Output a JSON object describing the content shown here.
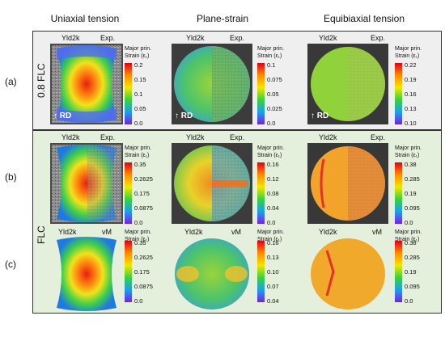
{
  "columns": [
    "Uniaxial tension",
    "Plane-strain",
    "Equibiaxial tension"
  ],
  "rows": [
    {
      "label": "(a)",
      "band": "0.8 FLC"
    },
    {
      "label": "(b)",
      "band": "FLC"
    },
    {
      "label": "(c)",
      "band": ""
    }
  ],
  "direction_label": "RD",
  "colorbar_title_line1": "Major prin.",
  "colorbar_title_line2": "Strain (ε₁)",
  "panels": {
    "a1": {
      "left": "Yld2k",
      "right": "Exp.",
      "ticks": [
        "0.2",
        "0.15",
        "0.1",
        "0.05",
        "0.0"
      ]
    },
    "a2": {
      "left": "Yld2k",
      "right": "Exp.",
      "ticks": [
        "0.1",
        "0.075",
        "0.05",
        "0.025",
        "0.0"
      ]
    },
    "a3": {
      "left": "Yld2k",
      "right": "Exp.",
      "ticks": [
        "0.22",
        "0.19",
        "0.16",
        "0.13",
        "0.10"
      ]
    },
    "b1": {
      "left": "Yld2k",
      "right": "Exp.",
      "ticks": [
        "0.35",
        "0.2625",
        "0.175",
        "0.0875",
        "0.0"
      ]
    },
    "b2": {
      "left": "Yld2k",
      "right": "Exp.",
      "ticks": [
        "0.16",
        "0.12",
        "0.08",
        "0.04",
        "0.0"
      ]
    },
    "b3": {
      "left": "Yld2k",
      "right": "Exp.",
      "ticks": [
        "0.38",
        "0.285",
        "0.19",
        "0.095",
        "0.0"
      ]
    },
    "c1": {
      "left": "Yld2k",
      "right": "vM",
      "ticks": [
        "0.35",
        "0.2625",
        "0.175",
        "0.0875",
        "0.0"
      ]
    },
    "c2": {
      "left": "Yld2k",
      "right": "vM",
      "ticks": [
        "0.16",
        "0.13",
        "0.10",
        "0.07",
        "0.04"
      ]
    },
    "c3": {
      "left": "Yld2k",
      "right": "vM",
      "ticks": [
        "0.38",
        "0.285",
        "0.19",
        "0.095",
        "0.0"
      ]
    }
  }
}
